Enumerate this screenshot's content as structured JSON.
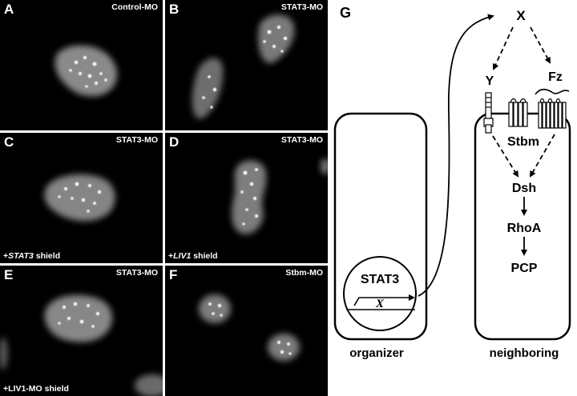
{
  "panels": [
    {
      "letter": "A",
      "label": "Control-MO",
      "caption": null
    },
    {
      "letter": "B",
      "label": "STAT3-MO",
      "caption": null
    },
    {
      "letter": "C",
      "label": "STAT3-MO",
      "caption": {
        "prefix": "+",
        "gene": "STAT3",
        "suffix": " shield"
      }
    },
    {
      "letter": "D",
      "label": "STAT3-MO",
      "caption": {
        "prefix": "+",
        "gene": "LIV1",
        "suffix": " shield"
      }
    },
    {
      "letter": "E",
      "label": "STAT3-MO",
      "caption": {
        "prefix": "+LIV1-MO shield",
        "gene": "",
        "suffix": ""
      }
    },
    {
      "letter": "F",
      "label": "Stbm-MO",
      "caption": null
    }
  ],
  "diagram": {
    "letter": "G",
    "nodes": {
      "x": "X",
      "y": "Y",
      "fz": "Fz",
      "stbm": "Stbm",
      "dsh": "Dsh",
      "rhoa": "RhoA",
      "pcp": "PCP"
    },
    "nucleus": {
      "tf": "STAT3",
      "gene": "X"
    },
    "cell_labels": {
      "organizer": "organizer",
      "neighboring": "neighboring"
    }
  }
}
